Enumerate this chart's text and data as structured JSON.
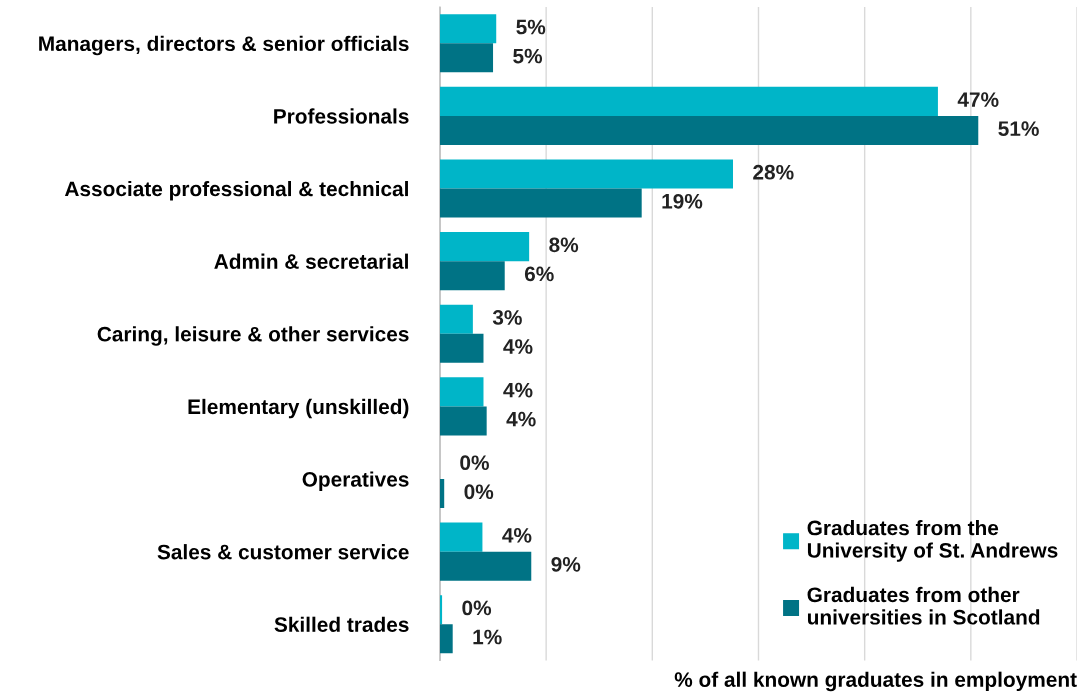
{
  "chart_data": {
    "type": "bar",
    "orientation": "horizontal",
    "xlabel": "% of all known graduates in employment",
    "categories": [
      "Managers, directors & senior officials",
      "Professionals",
      "Associate professional & technical",
      "Admin & secretarial",
      "Caring, leisure & other services",
      "Elementary (unskilled)",
      "Operatives",
      "Sales & customer service",
      "Skilled trades"
    ],
    "series": [
      {
        "name": "Graduates from the University of St. Andrews",
        "color": "#00b5c8",
        "values": [
          5.3,
          46.9,
          27.6,
          8.4,
          3.1,
          4.1,
          0,
          4.0,
          0.2
        ],
        "value_labels": [
          "5%",
          "47%",
          "28%",
          "8%",
          "3%",
          "4%",
          "0%",
          "4%",
          "0%"
        ]
      },
      {
        "name": "Graduates from other universities in Scotland",
        "color": "#007385",
        "values": [
          5.0,
          50.7,
          19.0,
          6.1,
          4.1,
          4.4,
          0.4,
          8.6,
          1.2
        ],
        "value_labels": [
          "5%",
          "51%",
          "19%",
          "6%",
          "4%",
          "4%",
          "0%",
          "9%",
          "1%"
        ]
      }
    ],
    "xlim": [
      0,
      60
    ],
    "xticks": [
      {
        "value": 0,
        "label": null
      },
      {
        "value": 10,
        "label": null
      },
      {
        "value": 20,
        "label": null
      },
      {
        "value": 30,
        "label": null
      },
      {
        "value": 40,
        "label": null
      },
      {
        "value": 50,
        "label": null
      },
      {
        "value": 60,
        "label": null
      }
    ],
    "grid": "x",
    "legend": "bottom right",
    "tick_labels": "y"
  }
}
